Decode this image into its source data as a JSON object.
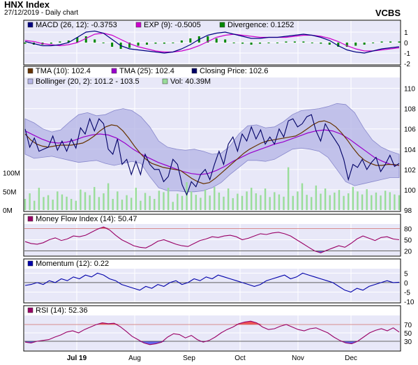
{
  "header": {
    "title": "HNX Index",
    "subtitle": "27/12/2019 - Daily chart",
    "brand": "VCBS"
  },
  "colors": {
    "panel_bg": "#e8e8f8",
    "macd_line": "#000080",
    "exp_line": "#cc00cc",
    "divergence": "#008800",
    "tma10": "#663300",
    "tma25": "#9900cc",
    "close": "#000066",
    "bollinger_fill": "#b4b4e6",
    "bollinger_edge": "#8888cc",
    "volume": "#99dd99",
    "mfi": "#990066",
    "momentum": "#0000aa",
    "rsi": "#990066",
    "overbought": "#ee5555",
    "oversold": "#6666ee",
    "ref_line": "#cc6666"
  },
  "chart_data": [
    {
      "id": "macd",
      "type": "line",
      "legend": [
        {
          "label": "MACD (26, 12): -0.3753",
          "color": "#000080"
        },
        {
          "label": "EXP (9): -0.5005",
          "color": "#cc00cc"
        },
        {
          "label": "Divergence: 0.1252",
          "color": "#008800"
        }
      ],
      "ylim": [
        -2,
        2
      ],
      "yticks": [
        "1",
        "0",
        "-1",
        "-2"
      ],
      "series": [
        {
          "name": "MACD (26, 12)",
          "values": [
            0.1,
            -0.1,
            -0.3,
            -0.3,
            -0.2,
            0.0,
            0.5,
            1.0,
            1.1,
            0.9,
            0.3,
            -0.3,
            -0.6,
            -0.7,
            -0.8,
            -0.9,
            -1.0,
            -0.9,
            -0.6,
            -0.2,
            0.3,
            0.7,
            0.9,
            1.0,
            0.8,
            0.6,
            0.4,
            0.4,
            0.5,
            0.5,
            0.6,
            0.7,
            0.8,
            0.7,
            0.5,
            0.2,
            -0.3,
            -0.7,
            -0.9,
            -1.0,
            -0.8,
            -0.6,
            -0.5,
            -0.4
          ]
        },
        {
          "name": "EXP (9)",
          "values": [
            0.2,
            0.1,
            -0.1,
            -0.2,
            -0.3,
            -0.2,
            0.0,
            0.4,
            0.8,
            0.9,
            0.7,
            0.3,
            -0.1,
            -0.4,
            -0.6,
            -0.8,
            -0.9,
            -0.9,
            -0.8,
            -0.6,
            -0.3,
            0.1,
            0.5,
            0.7,
            0.8,
            0.7,
            0.6,
            0.5,
            0.5,
            0.5,
            0.5,
            0.6,
            0.7,
            0.7,
            0.6,
            0.4,
            0.1,
            -0.3,
            -0.6,
            -0.8,
            -0.8,
            -0.7,
            -0.6,
            -0.5
          ]
        },
        {
          "name": "Divergence",
          "values": [
            -0.1,
            -0.2,
            -0.2,
            -0.1,
            0.1,
            0.2,
            0.5,
            0.6,
            0.3,
            0.0,
            -0.4,
            -0.6,
            -0.5,
            -0.3,
            -0.2,
            -0.1,
            -0.1,
            0.0,
            0.2,
            0.4,
            0.6,
            0.6,
            0.4,
            0.3,
            0.0,
            -0.1,
            -0.2,
            -0.1,
            0.0,
            0.0,
            0.1,
            0.1,
            0.1,
            0.0,
            -0.1,
            -0.2,
            -0.4,
            -0.4,
            -0.3,
            -0.2,
            0.0,
            0.1,
            0.1,
            0.1
          ]
        }
      ]
    },
    {
      "id": "price",
      "type": "line",
      "legend": [
        {
          "label": "TMA (10): 102.4",
          "color": "#663300"
        },
        {
          "label": "TMA (25): 102.4",
          "color": "#9900cc"
        },
        {
          "label": "Closing Price: 102.6",
          "color": "#000066"
        },
        {
          "label": "Bollinger (20, 2): 101.2 - 103.5",
          "color": "#b4b4e6"
        },
        {
          "label": "Vol: 40.39M",
          "color": "#99dd99"
        }
      ],
      "ylim": [
        98,
        111
      ],
      "yticks": [
        "110",
        "108",
        "106",
        "104",
        "102",
        "100",
        "98"
      ],
      "volume_ticks": [
        "100M",
        "50M",
        "0M"
      ],
      "volume_max": 150,
      "series": [
        {
          "name": "Closing Price",
          "values": [
            106.0,
            104.2,
            105.1,
            103.8,
            104.0,
            104.2,
            105.3,
            103.9,
            104.8,
            103.8,
            105.0,
            104.1,
            106.1,
            105.5,
            107.0,
            105.8,
            107.0,
            106.5,
            104.0,
            103.5,
            105.0,
            102.5,
            103.0,
            101.5,
            102.8,
            101.5,
            103.5,
            102.5,
            102.0,
            102.0,
            100.8,
            101.3,
            103.0,
            102.5,
            100.5,
            99.5,
            100.8,
            100.3,
            101.5,
            102.0,
            101.0,
            102.5,
            103.8,
            102.5,
            104.5,
            105.2,
            103.8,
            105.5,
            104.8,
            106.2,
            105.0,
            105.9,
            104.5,
            105.2,
            104.5,
            106.0,
            105.2,
            106.8,
            107.0,
            106.2,
            106.5,
            107.2,
            107.4,
            105.8,
            104.8,
            106.5,
            105.7,
            105.0,
            104.3,
            103.0,
            101.0,
            102.5,
            102.2,
            103.0,
            102.0,
            102.7,
            103.2,
            101.8,
            102.5,
            103.4,
            102.3,
            102.6
          ]
        },
        {
          "name": "TMA (10)",
          "values": [
            105.5,
            104.9,
            104.5,
            104.3,
            104.2,
            104.3,
            104.4,
            104.4,
            104.4,
            104.5,
            104.6,
            104.9,
            105.3,
            105.8,
            106.2,
            106.4,
            106.3,
            105.8,
            105.1,
            104.3,
            103.6,
            103.0,
            102.6,
            102.4,
            102.2,
            102.1,
            102.0,
            101.9,
            101.5,
            101.1,
            100.8,
            100.6,
            100.7,
            101.1,
            101.6,
            102.1,
            102.6,
            103.1,
            103.6,
            104.0,
            104.3,
            104.6,
            104.8,
            104.9,
            105.0,
            105.1,
            105.2,
            105.3,
            105.6,
            106.0,
            106.4,
            106.7,
            106.8,
            106.6,
            106.2,
            105.6,
            104.9,
            104.1,
            103.4,
            102.9,
            102.6,
            102.4,
            102.4,
            102.5,
            102.5,
            102.4
          ]
        },
        {
          "name": "TMA (25)",
          "values": [
            105.8,
            105.4,
            105.0,
            104.7,
            104.6,
            104.7,
            104.9,
            105.2,
            105.4,
            105.5,
            105.4,
            105.1,
            104.6,
            104.0,
            103.5,
            103.1,
            102.7,
            102.4,
            102.1,
            101.8,
            101.6,
            101.5,
            101.6,
            101.9,
            102.3,
            102.8,
            103.2,
            103.6,
            103.9,
            104.2,
            104.5,
            104.7,
            105.0,
            105.3,
            105.6,
            105.8,
            105.9,
            105.8,
            105.5,
            105.0,
            104.4,
            103.8,
            103.2,
            102.8,
            102.5,
            102.4
          ]
        },
        {
          "name": "Bollinger Upper",
          "values": [
            107.0,
            106.6,
            106.0,
            105.7,
            105.9,
            106.7,
            107.4,
            107.6,
            107.3,
            107.4,
            107.8,
            108.0,
            107.8,
            107.2,
            106.2,
            104.8,
            104.2,
            104.0,
            103.9,
            104.0,
            103.8,
            103.5,
            103.6,
            104.3,
            105.5,
            106.3,
            106.4,
            106.1,
            106.2,
            106.7,
            107.4,
            107.8,
            107.9,
            108.0,
            108.2,
            108.5,
            108.4,
            107.6,
            106.1,
            104.9,
            104.2,
            103.8,
            103.5
          ]
        },
        {
          "name": "Bollinger Lower",
          "values": [
            103.5,
            103.1,
            103.2,
            103.3,
            103.1,
            102.9,
            102.7,
            102.8,
            102.9,
            102.6,
            102.4,
            102.6,
            102.8,
            102.6,
            101.3,
            100.2,
            99.9,
            99.9,
            99.8,
            99.8,
            99.9,
            100.2,
            100.7,
            101.5,
            102.2,
            102.9,
            102.9,
            102.8,
            103.0,
            103.5,
            104.0,
            104.1,
            104.0,
            103.8,
            103.2,
            102.0,
            100.8,
            100.4,
            100.6,
            100.8,
            101.0,
            101.2,
            101.2
          ]
        },
        {
          "name": "Vol",
          "values": [
            30,
            45,
            25,
            60,
            35,
            40,
            28,
            50,
            42,
            36,
            30,
            25,
            55,
            48,
            40,
            62,
            35,
            45,
            72,
            30,
            50,
            28,
            40,
            33,
            60,
            25,
            46,
            38,
            30,
            52,
            48,
            60,
            22,
            44,
            38,
            75,
            50,
            41,
            33,
            55,
            39,
            62,
            47,
            36,
            58,
            32,
            44,
            38,
            50,
            60,
            45,
            40,
            58,
            35,
            48,
            42,
            36,
            115,
            38,
            50,
            72,
            41,
            35,
            66,
            44,
            58,
            40,
            47,
            54,
            38,
            45,
            62,
            50,
            42,
            56,
            40,
            47,
            39,
            52,
            48,
            42,
            40
          ]
        }
      ]
    },
    {
      "id": "mfi",
      "type": "line",
      "legend": [
        {
          "label": "Money Flow Index (14): 50.47",
          "color": "#990066"
        }
      ],
      "ylim": [
        10,
        90
      ],
      "yticks": [
        "80",
        "50",
        "20"
      ],
      "series": [
        {
          "name": "Money Flow Index (14)",
          "values": [
            45,
            40,
            38,
            42,
            50,
            55,
            48,
            52,
            60,
            58,
            62,
            70,
            78,
            84,
            76,
            62,
            50,
            42,
            34,
            30,
            28,
            36,
            46,
            50,
            44,
            38,
            34,
            32,
            40,
            48,
            52,
            58,
            56,
            60,
            62,
            58,
            50,
            54,
            60,
            66,
            64,
            68,
            70,
            66,
            60,
            50,
            40,
            30,
            20,
            15,
            22,
            28,
            34,
            30,
            40,
            52,
            60,
            54,
            48,
            56,
            58,
            52,
            50
          ]
        }
      ]
    },
    {
      "id": "momentum",
      "type": "line",
      "legend": [
        {
          "label": "Momentum (12): 0.22",
          "color": "#0000aa"
        }
      ],
      "ylim": [
        -10,
        7
      ],
      "yticks": [
        "5",
        "0",
        "-5",
        "-10"
      ],
      "series": [
        {
          "name": "Momentum (12)",
          "values": [
            -1.5,
            -1,
            0,
            -1,
            1,
            0,
            2,
            1,
            3,
            2,
            4,
            3,
            5,
            4,
            2,
            1,
            -1,
            -2,
            -3,
            -4,
            -2,
            -3,
            -1,
            -2,
            0,
            1,
            -1,
            0,
            2,
            1,
            3,
            2,
            4,
            3,
            2,
            1,
            0,
            -1,
            -2,
            -1,
            1,
            2,
            3,
            4,
            2,
            3,
            5,
            4,
            3,
            2,
            1,
            0,
            -2,
            -4,
            -5,
            -3,
            -4,
            -2,
            -1,
            0,
            1,
            0,
            0.2
          ]
        }
      ]
    },
    {
      "id": "rsi",
      "type": "line",
      "legend": [
        {
          "label": "RSI (14): 52.36",
          "color": "#990066"
        }
      ],
      "ylim": [
        10,
        90
      ],
      "yticks": [
        "70",
        "50",
        "30"
      ],
      "xticks": [
        "Jul 19",
        "Aug",
        "Sep",
        "Oct",
        "Nov",
        "Dec"
      ],
      "series": [
        {
          "name": "RSI (14)",
          "values": [
            28,
            26,
            30,
            32,
            34,
            40,
            45,
            52,
            55,
            50,
            58,
            64,
            70,
            74,
            72,
            73,
            65,
            54,
            42,
            34,
            26,
            22,
            24,
            28,
            40,
            48,
            46,
            38,
            44,
            34,
            28,
            32,
            40,
            50,
            58,
            64,
            72,
            76,
            78,
            74,
            64,
            58,
            60,
            66,
            70,
            64,
            58,
            55,
            60,
            62,
            56,
            50,
            40,
            32,
            26,
            24,
            30,
            40,
            50,
            56,
            60,
            55,
            62,
            52
          ]
        }
      ]
    }
  ]
}
